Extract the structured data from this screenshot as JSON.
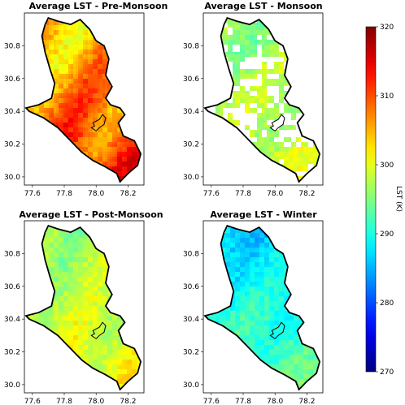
{
  "panels": [
    {
      "id": "pre-monsoon",
      "title": "Average LST - Pre-Monsoon",
      "base_temp": 309,
      "variation": 4.5,
      "missing_data": false
    },
    {
      "id": "monsoon",
      "title": "Average LST - Monsoon",
      "base_temp": 299,
      "variation": 4,
      "missing_data": true
    },
    {
      "id": "post-monsoon",
      "title": "Average LST - Post-Monsoon",
      "base_temp": 298,
      "variation": 4,
      "missing_data": false
    },
    {
      "id": "winter",
      "title": "Average LST - Winter",
      "base_temp": 292,
      "variation": 4,
      "missing_data": false
    }
  ],
  "axes": {
    "x_ticks": [
      "77.6",
      "77.8",
      "78.0",
      "78.2"
    ],
    "x_tick_values": [
      77.6,
      77.8,
      78.0,
      78.2
    ],
    "y_ticks": [
      "30.0",
      "30.2",
      "30.4",
      "30.6",
      "30.8"
    ],
    "y_tick_values": [
      30.0,
      30.2,
      30.4,
      30.6,
      30.8
    ],
    "x_range": [
      77.55,
      78.3
    ],
    "y_range": [
      29.95,
      31.0
    ]
  },
  "colorbar": {
    "label": "LST (K)",
    "min": 270,
    "max": 320,
    "ticks": [
      "270",
      "280",
      "290",
      "300",
      "310",
      "320"
    ],
    "tick_values": [
      270,
      280,
      290,
      300,
      310,
      320
    ],
    "colormap": "jet"
  },
  "colors": {
    "outline": "#000000",
    "background": "#ffffff"
  }
}
